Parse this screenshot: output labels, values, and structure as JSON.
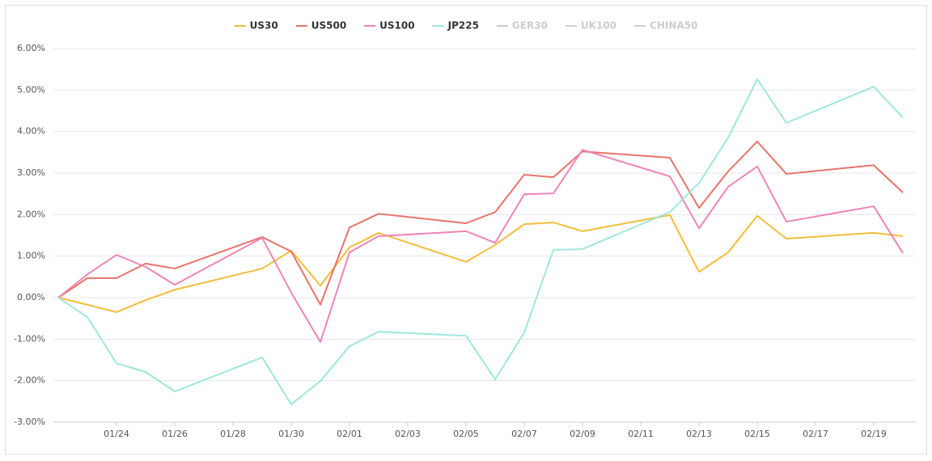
{
  "chart_data": {
    "type": "line",
    "x": [
      "01/22",
      "01/23",
      "01/24",
      "01/25",
      "01/26",
      "01/29",
      "01/30",
      "01/31",
      "02/01",
      "02/02",
      "02/05",
      "02/06",
      "02/07",
      "02/08",
      "02/09",
      "02/12",
      "02/13",
      "02/14",
      "02/15",
      "02/16",
      "02/19",
      "02/20"
    ],
    "series": [
      {
        "name": "US30",
        "color": "#f5bd3a",
        "values": [
          0,
          -0.17,
          -0.35,
          -0.06,
          0.19,
          0.7,
          1.13,
          0.29,
          1.21,
          1.56,
          0.86,
          1.27,
          1.77,
          1.81,
          1.6,
          1.99,
          0.62,
          1.09,
          1.97,
          1.42,
          1.56,
          1.48
        ]
      },
      {
        "name": "US500",
        "color": "#e8746a",
        "values": [
          0,
          0.47,
          0.47,
          0.82,
          0.7,
          1.46,
          1.11,
          -0.17,
          1.69,
          2.02,
          1.79,
          2.06,
          2.96,
          2.9,
          3.52,
          3.37,
          2.16,
          3.04,
          3.76,
          2.98,
          3.19,
          2.53
        ]
      },
      {
        "name": "US100",
        "color": "#ef84b8",
        "values": [
          0,
          0.56,
          1.03,
          0.74,
          0.31,
          1.44,
          0.12,
          -1.07,
          1.09,
          1.48,
          1.6,
          1.32,
          2.49,
          2.51,
          3.56,
          2.92,
          1.67,
          2.67,
          3.16,
          1.83,
          2.2,
          1.07
        ]
      },
      {
        "name": "JP225",
        "color": "#9ee7dc",
        "values": [
          0,
          -0.47,
          -1.58,
          -1.79,
          -2.26,
          -1.44,
          -2.57,
          -2.01,
          -1.17,
          -0.82,
          -0.92,
          -1.97,
          -0.84,
          1.15,
          1.17,
          2.06,
          2.76,
          3.85,
          5.26,
          4.21,
          5.08,
          4.34
        ]
      }
    ],
    "inactive_series": [
      "GER30",
      "UK100",
      "CHINA50"
    ],
    "inactive_color": "#cccccc",
    "ylim": [
      -3,
      6
    ],
    "yticks": [
      {
        "value": -3,
        "label": "-3.00%"
      },
      {
        "value": -2,
        "label": "-2.00%"
      },
      {
        "value": -1,
        "label": "-1.00%"
      },
      {
        "value": 0,
        "label": "0.00%"
      },
      {
        "value": 1,
        "label": "1.00%"
      },
      {
        "value": 2,
        "label": "2.00%"
      },
      {
        "value": 3,
        "label": "3.00%"
      },
      {
        "value": 4,
        "label": "4.00%"
      },
      {
        "value": 5,
        "label": "5.00%"
      },
      {
        "value": 6,
        "label": "6.00%"
      }
    ],
    "xticks": [
      "01/24",
      "01/26",
      "01/28",
      "01/30",
      "02/01",
      "02/03",
      "02/05",
      "02/07",
      "02/09",
      "02/11",
      "02/13",
      "02/15",
      "02/17",
      "02/19"
    ],
    "grid": true,
    "legend": "top"
  }
}
